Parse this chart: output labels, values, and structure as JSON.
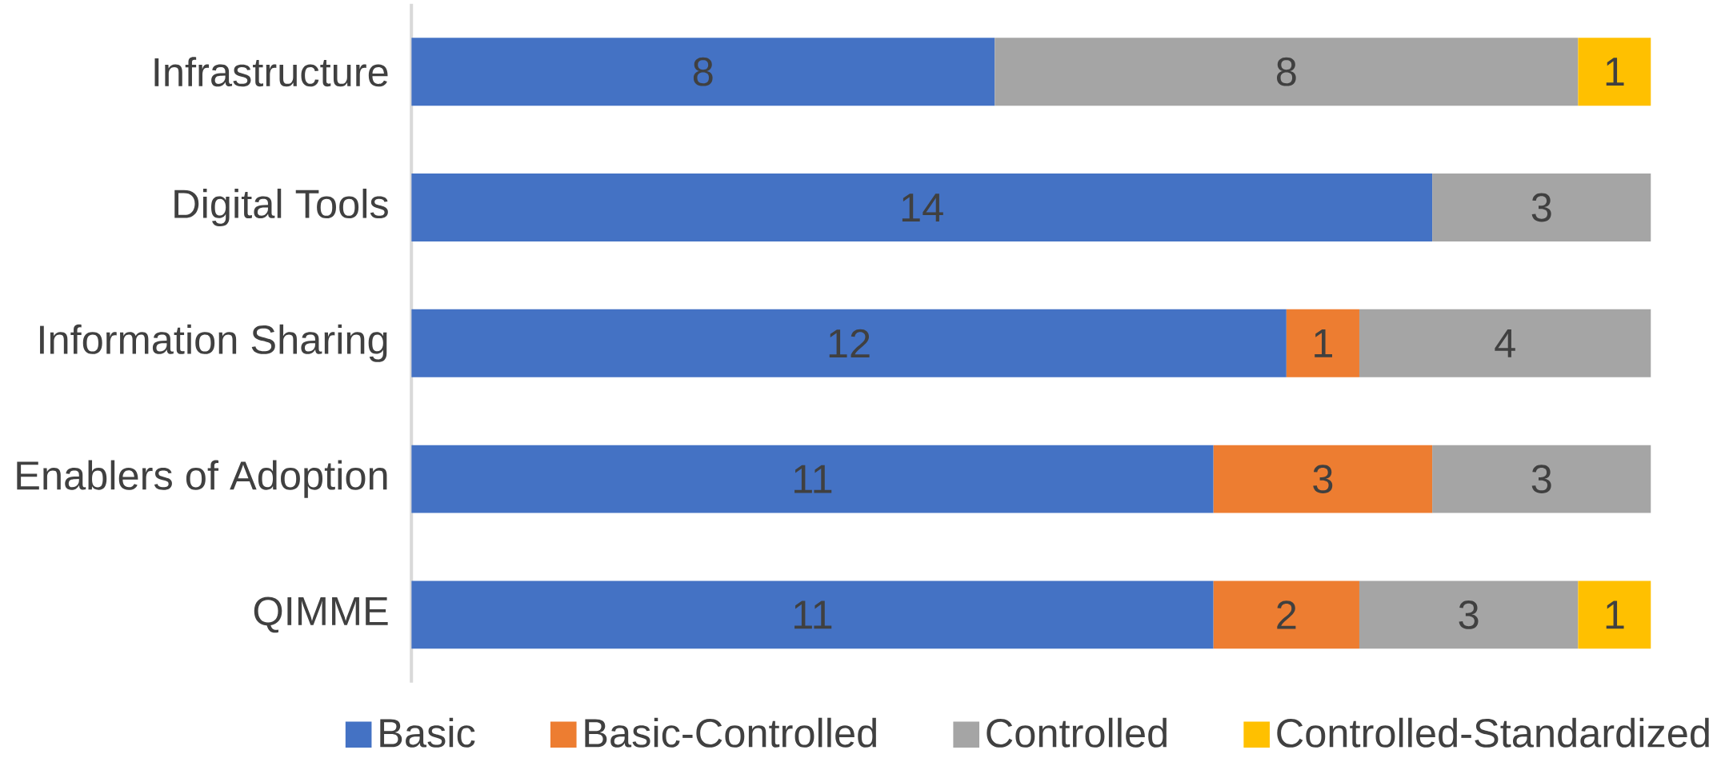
{
  "chart_data": {
    "type": "bar",
    "orientation": "horizontal",
    "stacked": true,
    "data_labels": true,
    "legend": "bottom",
    "tick_labels": "y",
    "xlim": [
      0,
      17
    ],
    "categories": [
      "Infrastructure",
      "Digital Tools",
      "Information Sharing",
      "Enablers of Adoption",
      "QIMME"
    ],
    "series": [
      {
        "name": "Basic",
        "color": "#4472c4",
        "values": [
          8,
          14,
          12,
          11,
          11
        ]
      },
      {
        "name": "Basic-Controlled",
        "color": "#ed7d31",
        "values": [
          null,
          null,
          1,
          3,
          2
        ]
      },
      {
        "name": "Controlled",
        "color": "#a5a5a5",
        "values": [
          8,
          3,
          4,
          3,
          3
        ]
      },
      {
        "name": "Controlled-Standardized",
        "color": "#ffc000",
        "values": [
          1,
          null,
          null,
          null,
          1
        ]
      }
    ]
  }
}
